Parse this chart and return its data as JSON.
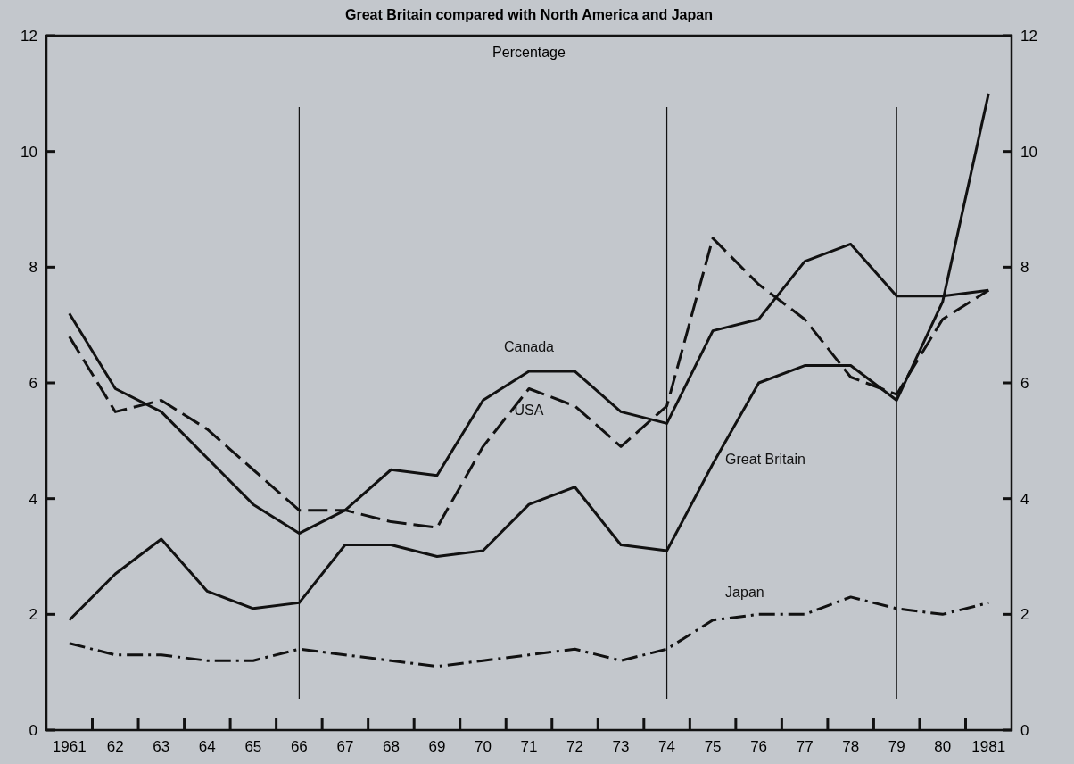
{
  "chart_data": {
    "type": "line",
    "title": "Great Britain compared with North America and Japan",
    "annotations": [
      "Percentage"
    ],
    "categories": [
      "1961",
      "62",
      "63",
      "64",
      "65",
      "66",
      "67",
      "68",
      "69",
      "70",
      "71",
      "72",
      "73",
      "74",
      "75",
      "76",
      "77",
      "78",
      "79",
      "80",
      "1981"
    ],
    "series": [
      {
        "name": "Canada",
        "color": "#111111",
        "line_style": "solid",
        "values": [
          7.2,
          5.9,
          5.5,
          4.7,
          3.9,
          3.4,
          3.8,
          4.5,
          4.4,
          5.7,
          6.2,
          6.2,
          5.5,
          5.3,
          6.9,
          7.1,
          8.1,
          8.4,
          7.5,
          7.5,
          7.6
        ]
      },
      {
        "name": "USA",
        "color": "#111111",
        "line_style": "dashed",
        "values": [
          6.8,
          5.5,
          5.7,
          5.2,
          4.5,
          3.8,
          3.8,
          3.6,
          3.5,
          4.9,
          5.9,
          5.6,
          4.9,
          5.6,
          8.5,
          7.7,
          7.1,
          6.1,
          5.8,
          7.1,
          7.6
        ]
      },
      {
        "name": "Great Britain",
        "color": "#111111",
        "line_style": "solid",
        "values": [
          1.9,
          2.7,
          3.3,
          2.4,
          2.1,
          2.2,
          3.2,
          3.2,
          3.0,
          3.1,
          3.9,
          4.2,
          3.2,
          3.1,
          4.6,
          6.0,
          6.3,
          6.3,
          5.7,
          7.4,
          11.0
        ]
      },
      {
        "name": "Japan",
        "color": "#111111",
        "line_style": "dashdot",
        "values": [
          1.5,
          1.3,
          1.3,
          1.2,
          1.2,
          1.4,
          1.3,
          1.2,
          1.1,
          1.2,
          1.3,
          1.4,
          1.2,
          1.4,
          1.9,
          2.0,
          2.0,
          2.3,
          2.1,
          2.0,
          2.2
        ]
      }
    ],
    "ylim": [
      0,
      12
    ],
    "yticks": [
      0,
      2,
      4,
      6,
      8,
      10,
      12
    ],
    "y2lim": [
      0,
      12
    ],
    "y2ticks": [
      0,
      2,
      4,
      6,
      8,
      10,
      12
    ],
    "ref_lines": [
      {
        "axis": "x",
        "value": "66",
        "label": null
      },
      {
        "axis": "x",
        "value": "74",
        "label": null
      },
      {
        "axis": "x",
        "value": "79",
        "label": null
      }
    ],
    "grid": false,
    "marker": "none"
  }
}
